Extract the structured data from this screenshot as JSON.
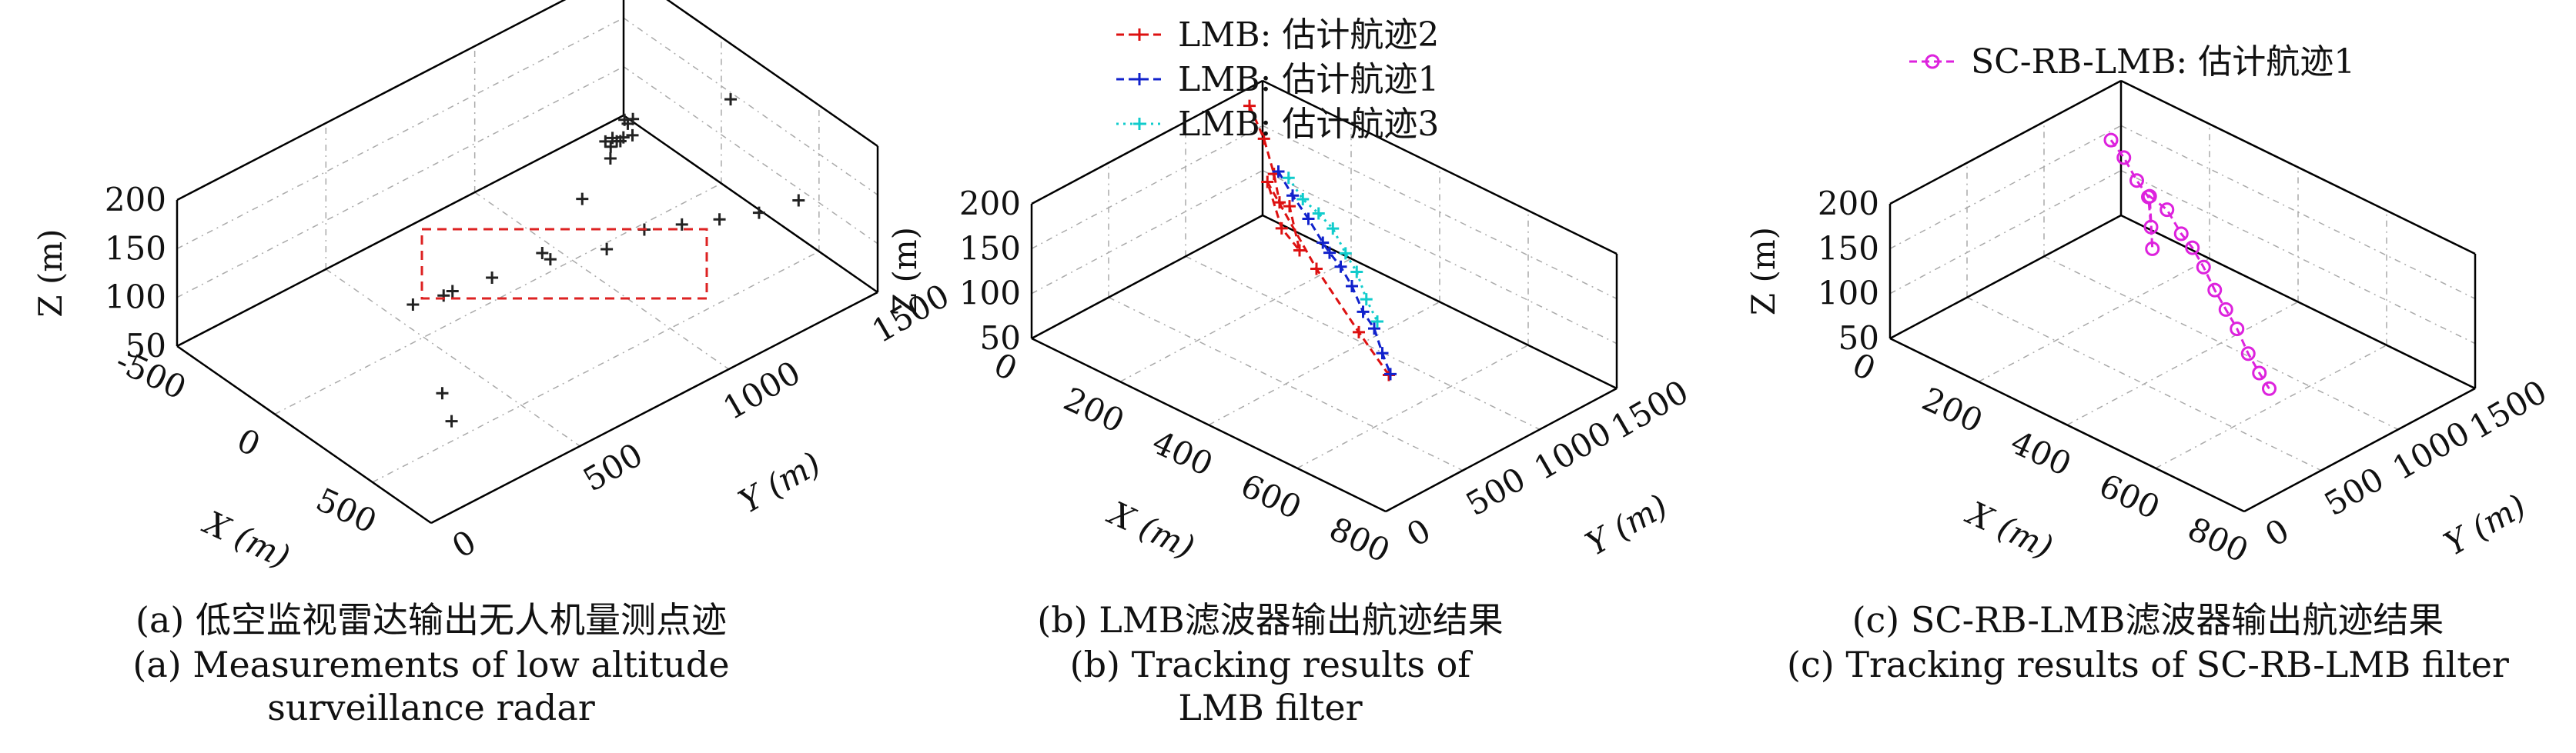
{
  "chart_data": [
    {
      "id": "a",
      "type": "scatter",
      "projection": "3d",
      "grid": true,
      "xlabel": "X (m)",
      "ylabel": "Y (m)",
      "zlabel": "Z (m)",
      "xticks": [
        "-500",
        "0",
        "500"
      ],
      "yticks": [
        "0",
        "500",
        "1000",
        "1500"
      ],
      "zticks": [
        "50",
        "100",
        "150",
        "200"
      ],
      "xlim": [
        -500,
        800
      ],
      "ylim": [
        0,
        1500
      ],
      "zlim": [
        50,
        200
      ],
      "marker": "+",
      "marker_color": "#222222",
      "highlight_box": {
        "style": "dashed",
        "color": "#dd2222"
      },
      "series": [
        {
          "points": [
            [
              -120,
              1250,
              120
            ],
            [
              -100,
              1200,
              130
            ],
            [
              -80,
              1180,
              115
            ],
            [
              -150,
              1300,
              110
            ],
            [
              -60,
              1150,
              140
            ],
            [
              -200,
              1280,
              100
            ],
            [
              -90,
              1220,
              125
            ],
            [
              -130,
              1260,
              135
            ],
            [
              -170,
              1240,
              105
            ]
          ]
        },
        {
          "points": [
            [
              250,
              300,
              150
            ],
            [
              300,
              400,
              155
            ],
            [
              350,
              500,
              160
            ],
            [
              420,
              650,
              165
            ],
            [
              480,
              800,
              160
            ],
            [
              520,
              900,
              170
            ],
            [
              560,
              1000,
              165
            ],
            [
              600,
              1100,
              160
            ],
            [
              650,
              1200,
              158
            ],
            [
              700,
              1300,
              162
            ]
          ]
        },
        {
          "points": [
            [
              -300,
              1400,
              90
            ],
            [
              -250,
              1350,
              100
            ],
            [
              50,
              1000,
              120
            ],
            [
              150,
              800,
              110
            ],
            [
              400,
              300,
              80
            ],
            [
              600,
              200,
              95
            ],
            [
              200,
              1400,
              180
            ],
            [
              -50,
              600,
              70
            ]
          ]
        }
      ],
      "caption_zh": "(a) 低空监视雷达输出无人机量测点迹",
      "caption_en": "(a) Measurements of low altitude\nsurveillance radar"
    },
    {
      "id": "b",
      "type": "line",
      "projection": "3d",
      "grid": true,
      "xlabel": "X (m)",
      "ylabel": "Y (m)",
      "zlabel": "Z (m)",
      "xticks": [
        "0",
        "200",
        "400",
        "600",
        "800"
      ],
      "yticks": [
        "0",
        "500",
        "1000",
        "1500"
      ],
      "zticks": [
        "50",
        "100",
        "150",
        "200"
      ],
      "xlim": [
        0,
        800
      ],
      "ylim": [
        0,
        1500
      ],
      "zlim": [
        50,
        200
      ],
      "legend_position": "top",
      "series": [
        {
          "name": "LMB: 估计航迹2",
          "color": "#dd1111",
          "marker": "+",
          "style": "dashed",
          "points": [
            [
              40,
              1300,
              200
            ],
            [
              90,
              1250,
              180
            ],
            [
              130,
              1200,
              155
            ],
            [
              160,
              1150,
              135
            ],
            [
              200,
              1100,
              145
            ],
            [
              240,
              1050,
              110
            ],
            [
              210,
              1020,
              130
            ],
            [
              150,
              1100,
              160
            ],
            [
              400,
              700,
              160
            ],
            [
              600,
              400,
              165
            ],
            [
              720,
              250,
              160
            ]
          ]
        },
        {
          "name": "LMB: 估计航迹1",
          "color": "#1122cc",
          "marker": "+",
          "style": "dashed",
          "points": [
            [
              140,
              1200,
              160
            ],
            [
              200,
              1120,
              155
            ],
            [
              260,
              1050,
              150
            ],
            [
              310,
              1000,
              140
            ],
            [
              360,
              900,
              150
            ],
            [
              420,
              800,
              158
            ],
            [
              480,
              700,
              160
            ],
            [
              540,
              600,
              155
            ],
            [
              600,
              500,
              160
            ],
            [
              660,
              380,
              158
            ],
            [
              720,
              260,
              160
            ]
          ]
        },
        {
          "name": "LMB: 估计航迹3",
          "color": "#11cccc",
          "marker": "+",
          "style": "dotted",
          "points": [
            [
              170,
              1180,
              162
            ],
            [
              230,
              1100,
              160
            ],
            [
              290,
              1030,
              165
            ],
            [
              350,
              950,
              170
            ],
            [
              410,
              860,
              165
            ],
            [
              470,
              760,
              168
            ],
            [
              530,
              650,
              162
            ],
            [
              600,
              520,
              166
            ]
          ]
        }
      ],
      "caption_zh": "(b) LMB滤波器输出航迹结果",
      "caption_en": "(b) Tracking results of\nLMB filter"
    },
    {
      "id": "c",
      "type": "line",
      "projection": "3d",
      "grid": true,
      "xlabel": "X (m)",
      "ylabel": "Y (m)",
      "zlabel": "Z (m)",
      "xticks": [
        "0",
        "200",
        "400",
        "600",
        "800"
      ],
      "yticks": [
        "0",
        "500",
        "1000",
        "1500"
      ],
      "zticks": [
        "50",
        "100",
        "150",
        "200"
      ],
      "xlim": [
        0,
        800
      ],
      "ylim": [
        0,
        1500
      ],
      "zlim": [
        50,
        200
      ],
      "legend_position": "top",
      "series": [
        {
          "name": "SC-RB-LMB: 估计航迹1",
          "color": "#dd22dd",
          "marker": "o",
          "style": "dashed",
          "points": [
            [
              40,
              1320,
              160
            ],
            [
              90,
              1260,
              158
            ],
            [
              140,
              1200,
              150
            ],
            [
              180,
              1160,
              145
            ],
            [
              200,
              1120,
              120
            ],
            [
              210,
              1100,
              100
            ],
            [
              190,
              1140,
              150
            ],
            [
              250,
              1080,
              155
            ],
            [
              310,
              1000,
              150
            ],
            [
              370,
              900,
              158
            ],
            [
              430,
              800,
              160
            ],
            [
              490,
              700,
              158
            ],
            [
              550,
              600,
              160
            ],
            [
              610,
              500,
              162
            ],
            [
              670,
              400,
              158
            ],
            [
              730,
              300,
              160
            ],
            [
              780,
              220,
              162
            ]
          ]
        }
      ],
      "caption_zh": "(c) SC-RB-LMB滤波器输出航迹结果",
      "caption_en": "(c) Tracking results of SC-RB-LMB filter"
    }
  ]
}
